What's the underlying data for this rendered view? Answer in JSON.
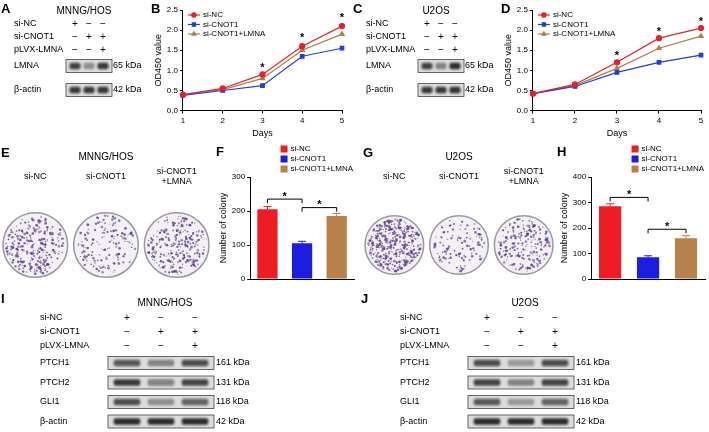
{
  "chart_data": [
    {
      "panel": "B",
      "type": "line",
      "x_label": "Days",
      "y_label": "OD450 value",
      "x": [
        1,
        2,
        3,
        4,
        5
      ],
      "xlim": [
        1,
        5
      ],
      "xticks": [
        1,
        2,
        3,
        4,
        5
      ],
      "ylim": [
        0,
        2.5
      ],
      "yticks": [
        {
          "value": 0,
          "label": "0.0"
        },
        0.5,
        {
          "value": 1,
          "label": "1.0"
        },
        1.5,
        {
          "value": 2,
          "label": "2.0"
        },
        2.5
      ],
      "grid": false,
      "legend": "top-left",
      "series": [
        {
          "name": "si-NC",
          "color": "#e8202a",
          "marker": "circle",
          "values": [
            0.4,
            0.55,
            0.9,
            1.6,
            2.1
          ]
        },
        {
          "name": "si-CNOT1",
          "color": "#1f3fd6",
          "marker": "square",
          "values": [
            0.38,
            0.5,
            0.62,
            1.35,
            1.55
          ]
        },
        {
          "name": "si-CNOT1+LMNA",
          "color": "#b07d48",
          "marker": "triangle",
          "values": [
            0.4,
            0.52,
            0.8,
            1.5,
            1.9
          ]
        }
      ],
      "annotations": [
        {
          "text": "*",
          "x": 3,
          "y": 1.05
        },
        {
          "text": "*",
          "x": 4,
          "y": 1.8
        },
        {
          "text": "*",
          "x": 5,
          "y": 2.3
        }
      ]
    },
    {
      "panel": "D",
      "type": "line",
      "x_label": "Days",
      "y_label": "OD450 value",
      "x": [
        1,
        2,
        3,
        4,
        5
      ],
      "xlim": [
        1,
        5
      ],
      "xticks": [
        1,
        2,
        3,
        4,
        5
      ],
      "ylim": [
        0,
        2.5
      ],
      "yticks": [
        {
          "value": 0,
          "label": "0.0"
        },
        0.5,
        {
          "value": 1,
          "label": "1.0"
        },
        1.5,
        {
          "value": 2,
          "label": "2.0"
        },
        2.5
      ],
      "grid": false,
      "legend": "top-left",
      "series": [
        {
          "name": "si-NC",
          "color": "#e8202a",
          "marker": "circle",
          "values": [
            0.42,
            0.65,
            1.2,
            1.8,
            2.05
          ]
        },
        {
          "name": "si-CNOT1",
          "color": "#1f3fd6",
          "marker": "square",
          "values": [
            0.42,
            0.6,
            0.95,
            1.2,
            1.38
          ]
        },
        {
          "name": "si-CNOT1+LMNA",
          "color": "#b07d48",
          "marker": "triangle",
          "values": [
            0.42,
            0.62,
            1.05,
            1.55,
            1.85
          ]
        }
      ],
      "annotations": [
        {
          "text": "*",
          "x": 3,
          "y": 1.35
        },
        {
          "text": "*",
          "x": 4,
          "y": 1.95
        },
        {
          "text": "*",
          "x": 5,
          "y": 2.2
        }
      ]
    },
    {
      "panel": "F",
      "type": "bar",
      "y_label": "Number of colony",
      "categories": [
        "si-NC",
        "si-CNOT1",
        "si-CNOT1+LMNA"
      ],
      "values": [
        205,
        105,
        185
      ],
      "errors": [
        8,
        6,
        8
      ],
      "colors": [
        "#ee1c25",
        "#1d1de0",
        "#b8804a"
      ],
      "ylim": [
        0,
        300
      ],
      "yticks": [
        0,
        100,
        200,
        300
      ],
      "grid": false,
      "tick_labels": "y",
      "legend": "top-right",
      "significance": [
        {
          "from": 0,
          "to": 1,
          "y": 235,
          "text": "*"
        },
        {
          "from": 1,
          "to": 2,
          "y": 210,
          "text": "*"
        }
      ]
    },
    {
      "panel": "H",
      "type": "bar",
      "y_label": "Number of colony",
      "categories": [
        "si-NC",
        "si-CNOT1",
        "si-CNOT1+LMNA"
      ],
      "values": [
        285,
        85,
        160
      ],
      "errors": [
        10,
        6,
        10
      ],
      "colors": [
        "#ee1c25",
        "#1d1de0",
        "#b8804a"
      ],
      "ylim": [
        0,
        400
      ],
      "yticks": [
        0,
        100,
        200,
        300,
        400
      ],
      "grid": false,
      "tick_labels": "y",
      "legend": "top-right",
      "significance": [
        {
          "from": 0,
          "to": 1,
          "y": 320,
          "text": "*"
        },
        {
          "from": 1,
          "to": 2,
          "y": 195,
          "text": "*"
        }
      ]
    }
  ],
  "blots": [
    {
      "panel": "A",
      "title": "MNNG/HOS",
      "conditions": [
        {
          "name": "si-NC",
          "signs": [
            "+",
            "−",
            "−"
          ]
        },
        {
          "name": "si-CNOT1",
          "signs": [
            "−",
            "+",
            "+"
          ]
        },
        {
          "name": "pLVX-LMNA",
          "signs": [
            "−",
            "−",
            "+"
          ]
        }
      ],
      "bands": [
        {
          "name": "LMNA",
          "size": "65 kDa",
          "intensity": [
            0.75,
            0.35,
            0.8
          ]
        },
        {
          "name": "β-actin",
          "size": "42 kDa",
          "intensity": [
            0.8,
            0.8,
            0.8
          ]
        }
      ]
    },
    {
      "panel": "C",
      "title": "U2OS",
      "conditions": [
        {
          "name": "si-NC",
          "signs": [
            "+",
            "−",
            "−"
          ]
        },
        {
          "name": "si-CNOT1",
          "signs": [
            "−",
            "+",
            "+"
          ]
        },
        {
          "name": "pLVX-LMNA",
          "signs": [
            "−",
            "−",
            "+"
          ]
        }
      ],
      "bands": [
        {
          "name": "LMNA",
          "size": "65 kDa",
          "intensity": [
            0.75,
            0.4,
            0.85
          ]
        },
        {
          "name": "β-actin",
          "size": "42 kDa",
          "intensity": [
            0.8,
            0.8,
            0.82
          ]
        }
      ]
    },
    {
      "panel": "I",
      "title": "MNNG/HOS",
      "conditions": [
        {
          "name": "si-NC",
          "signs": [
            "+",
            "−",
            "−"
          ]
        },
        {
          "name": "si-CNOT1",
          "signs": [
            "−",
            "+",
            "+"
          ]
        },
        {
          "name": "pLVX-LMNA",
          "signs": [
            "−",
            "−",
            "+"
          ]
        }
      ],
      "bands": [
        {
          "name": "PTCH1",
          "size": "161 kDa",
          "intensity": [
            0.65,
            0.4,
            0.7
          ]
        },
        {
          "name": "PTCH2",
          "size": "131 kDa",
          "intensity": [
            0.8,
            0.45,
            0.75
          ]
        },
        {
          "name": "GLI1",
          "size": "118 kDa",
          "intensity": [
            0.7,
            0.35,
            0.6
          ]
        },
        {
          "name": "β-actin",
          "size": "42 kDa",
          "intensity": [
            0.85,
            0.85,
            0.85
          ]
        }
      ]
    },
    {
      "panel": "J",
      "title": "U2OS",
      "conditions": [
        {
          "name": "si-NC",
          "signs": [
            "+",
            "−",
            "−"
          ]
        },
        {
          "name": "si-CNOT1",
          "signs": [
            "−",
            "+",
            "+"
          ]
        },
        {
          "name": "pLVX-LMNA",
          "signs": [
            "−",
            "−",
            "+"
          ]
        }
      ],
      "bands": [
        {
          "name": "PTCH1",
          "size": "161 kDa",
          "intensity": [
            0.7,
            0.3,
            0.7
          ]
        },
        {
          "name": "PTCH2",
          "size": "131 kDa",
          "intensity": [
            0.75,
            0.4,
            0.75
          ]
        },
        {
          "name": "GLI1",
          "size": "118 kDa",
          "intensity": [
            0.65,
            0.3,
            0.6
          ]
        },
        {
          "name": "β-actin",
          "size": "42 kDa",
          "intensity": [
            0.85,
            0.85,
            0.85
          ]
        }
      ]
    }
  ],
  "colony_images": [
    {
      "panel": "E",
      "title": "MNNG/HOS",
      "dishes": [
        [
          "si-NC"
        ],
        [
          "si-CNOT1"
        ],
        [
          "si-CNOT1",
          "+LMNA"
        ]
      ]
    },
    {
      "panel": "G",
      "title": "U2OS",
      "dishes": [
        [
          "si-NC"
        ],
        [
          "si-CNOT1"
        ],
        [
          "si-CNOT1",
          "+LMNA"
        ]
      ]
    }
  ]
}
